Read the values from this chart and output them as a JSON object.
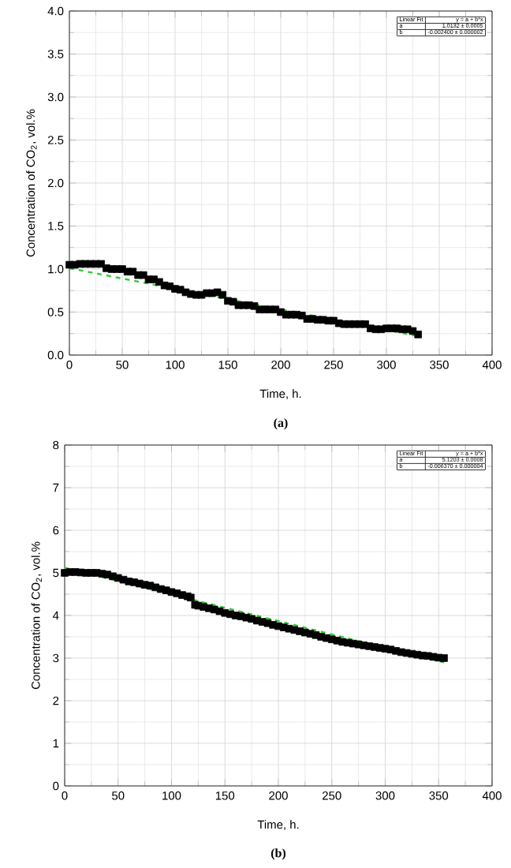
{
  "chart_data": [
    {
      "type": "scatter",
      "xlabel": "Time, h.",
      "ylabel": "Concentration of CO$_{2}$, vol.%",
      "xlim": [
        0,
        400
      ],
      "ylim": [
        0,
        4
      ],
      "xticks": [
        0,
        50,
        100,
        150,
        200,
        250,
        300,
        350,
        400
      ],
      "yticks": [
        {
          "value": 0,
          "label": "0.0"
        },
        {
          "value": 0.5,
          "label": "0.5"
        },
        {
          "value": 1,
          "label": "1.0"
        },
        {
          "value": 1.5,
          "label": "1.5"
        },
        {
          "value": 2,
          "label": "2.0"
        },
        {
          "value": 2.5,
          "label": "2.5"
        },
        {
          "value": 3,
          "label": "3.0"
        },
        {
          "value": 3.5,
          "label": "3.5"
        },
        {
          "value": 4,
          "label": "4.0"
        }
      ],
      "grid": true,
      "series": [
        {
          "marker": "square",
          "color": "#000000",
          "x": [
            0,
            5,
            10,
            15,
            20,
            25,
            30,
            35,
            40,
            45,
            50,
            55,
            60,
            65,
            70,
            75,
            80,
            85,
            90,
            95,
            100,
            105,
            110,
            115,
            120,
            125,
            130,
            135,
            140,
            145,
            150,
            155,
            160,
            165,
            170,
            175,
            180,
            185,
            190,
            195,
            200,
            205,
            210,
            215,
            220,
            225,
            230,
            235,
            240,
            245,
            250,
            255,
            260,
            265,
            270,
            275,
            280,
            285,
            290,
            295,
            300,
            305,
            310,
            315,
            320,
            325,
            330
          ],
          "values": [
            1.05,
            1.05,
            1.06,
            1.06,
            1.06,
            1.06,
            1.06,
            1.01,
            1.0,
            1.0,
            1.0,
            0.97,
            0.97,
            0.93,
            0.93,
            0.88,
            0.88,
            0.85,
            0.81,
            0.8,
            0.77,
            0.76,
            0.73,
            0.71,
            0.7,
            0.7,
            0.72,
            0.72,
            0.73,
            0.7,
            0.63,
            0.62,
            0.58,
            0.58,
            0.58,
            0.57,
            0.53,
            0.53,
            0.53,
            0.53,
            0.5,
            0.47,
            0.47,
            0.47,
            0.46,
            0.42,
            0.42,
            0.41,
            0.41,
            0.4,
            0.4,
            0.37,
            0.36,
            0.36,
            0.36,
            0.36,
            0.36,
            0.31,
            0.3,
            0.3,
            0.31,
            0.31,
            0.31,
            0.3,
            0.3,
            0.28,
            0.24
          ]
        },
        {
          "type": "line",
          "marker": "none",
          "line_style": "dashed",
          "color": "#33cc33",
          "x": [
            0,
            330
          ],
          "values": [
            1.01,
            0.22
          ]
        }
      ],
      "annotations": [
        "Linear Fit",
        "y = a + b*x",
        "a",
        "1.0132 ± 0.0005",
        "b",
        "-0.002400 ± 0.000002",
        "(a)"
      ]
    },
    {
      "type": "scatter",
      "xlabel": "Time, h.",
      "ylabel": "Concentration of CO$_{2}$, vol.%",
      "xlim": [
        0,
        400
      ],
      "ylim": [
        0,
        8
      ],
      "xticks": [
        0,
        50,
        100,
        150,
        200,
        250,
        300,
        350,
        400
      ],
      "yticks": [
        0,
        1,
        2,
        3,
        4,
        5,
        6,
        7,
        8
      ],
      "grid": true,
      "series": [
        {
          "marker": "square",
          "color": "#000000",
          "x": [
            0,
            5,
            10,
            15,
            20,
            25,
            30,
            35,
            40,
            45,
            50,
            55,
            60,
            65,
            70,
            75,
            80,
            85,
            90,
            95,
            100,
            105,
            110,
            115,
            118,
            122,
            125,
            130,
            135,
            140,
            145,
            150,
            155,
            160,
            165,
            170,
            175,
            180,
            185,
            190,
            195,
            200,
            205,
            210,
            215,
            220,
            225,
            230,
            235,
            240,
            245,
            250,
            255,
            260,
            265,
            270,
            275,
            280,
            285,
            290,
            295,
            300,
            305,
            310,
            315,
            320,
            325,
            330,
            335,
            340,
            345,
            350,
            355
          ],
          "values": [
            5.0,
            5.02,
            5.02,
            5.01,
            5.0,
            5.0,
            5.0,
            4.98,
            4.96,
            4.92,
            4.88,
            4.84,
            4.8,
            4.78,
            4.75,
            4.72,
            4.7,
            4.66,
            4.62,
            4.59,
            4.55,
            4.52,
            4.48,
            4.45,
            4.42,
            4.25,
            4.23,
            4.2,
            4.17,
            4.14,
            4.1,
            4.06,
            4.03,
            4.0,
            3.98,
            3.95,
            3.92,
            3.88,
            3.85,
            3.82,
            3.78,
            3.75,
            3.72,
            3.69,
            3.66,
            3.63,
            3.6,
            3.57,
            3.54,
            3.5,
            3.47,
            3.44,
            3.41,
            3.38,
            3.36,
            3.34,
            3.32,
            3.3,
            3.28,
            3.26,
            3.24,
            3.22,
            3.2,
            3.17,
            3.14,
            3.12,
            3.1,
            3.08,
            3.06,
            3.05,
            3.03,
            3.01,
            3.0
          ]
        },
        {
          "type": "line",
          "marker": "none",
          "line_style": "dashed",
          "color": "#33cc33",
          "x": [
            0,
            355
          ],
          "values": [
            5.12,
            2.9
          ]
        }
      ],
      "annotations": [
        "Linear Fit",
        "y = a + b*x",
        "a",
        "5.1203 ± 0.0008",
        "b",
        "-0.006370 ± 0.000004",
        "(b)"
      ]
    }
  ]
}
